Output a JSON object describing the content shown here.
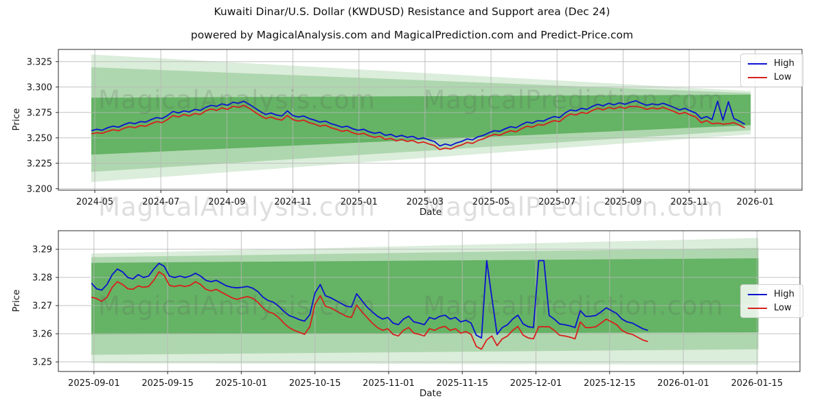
{
  "title": "Kuwaiti Dinar/U.S. Dollar (KWDUSD) Resistance and Support area (Dec 24)",
  "subtitle": "powered by MagicalAnalysis.com and MagicalPrediction.com and Predict-Price.com",
  "watermark": {
    "left": "MagicalAnalysis.com",
    "right": "MagicalPrediction.com"
  },
  "legend": {
    "high": "High",
    "low": "Low"
  },
  "colors": {
    "high": "#0a12d0",
    "low": "#d8201c",
    "band": "#008000",
    "grid": "#b6b6b6",
    "spine": "#2b2b2b",
    "text": "#151515"
  },
  "chart_data": [
    {
      "id": "top",
      "type": "line",
      "xlabel": "Date",
      "ylabel": "Price",
      "x_ticks": [
        "2024-05",
        "2024-07",
        "2024-09",
        "2024-11",
        "2025-01",
        "2025-03",
        "2025-05",
        "2025-07",
        "2025-09",
        "2025-11",
        "2026-01"
      ],
      "y_tick_labels": [
        "3.200",
        "3.225",
        "3.250",
        "3.275",
        "3.300",
        "3.325"
      ],
      "y_tick_values": [
        3.2,
        3.225,
        3.25,
        3.275,
        3.3,
        3.325
      ],
      "ylim": [
        3.1985,
        3.337
      ],
      "grid": true,
      "legend_pos": "upper right",
      "x_tick_span": [
        0.049,
        0.937
      ],
      "x_span": [
        0.0443,
        0.923
      ],
      "band_span": [
        0.0443,
        0.931
      ],
      "bands": [
        {
          "name": "outer-area",
          "opacity": 0.14,
          "left": [
            3.2065,
            3.332
          ],
          "right": [
            3.2535,
            3.296
          ]
        },
        {
          "name": "middle-area",
          "opacity": 0.2,
          "left": [
            3.2165,
            3.3195
          ],
          "right": [
            3.2575,
            3.294
          ]
        },
        {
          "name": "inner-area",
          "opacity": 0.42,
          "left": [
            3.2335,
            3.2895
          ],
          "right": [
            3.2625,
            3.2925
          ]
        }
      ],
      "series": [
        {
          "name": "High",
          "color_key": "high",
          "values": [
            3.257,
            3.2585,
            3.2575,
            3.26,
            3.2615,
            3.2605,
            3.263,
            3.265,
            3.264,
            3.266,
            3.2655,
            3.268,
            3.27,
            3.269,
            3.272,
            3.276,
            3.2745,
            3.2765,
            3.2755,
            3.278,
            3.277,
            3.28,
            3.282,
            3.281,
            3.2835,
            3.282,
            3.285,
            3.284,
            3.286,
            3.283,
            3.2795,
            3.276,
            3.273,
            3.2745,
            3.2725,
            3.2715,
            3.2765,
            3.272,
            3.2705,
            3.2715,
            3.269,
            3.2675,
            3.2655,
            3.2665,
            3.264,
            3.2625,
            3.2605,
            3.2615,
            3.259,
            3.2575,
            3.2585,
            3.256,
            3.2545,
            3.2555,
            3.2525,
            3.2535,
            3.251,
            3.2525,
            3.2505,
            3.2515,
            3.249,
            3.25,
            3.248,
            3.2465,
            3.242,
            3.244,
            3.2425,
            3.245,
            3.2465,
            3.249,
            3.248,
            3.251,
            3.2525,
            3.255,
            3.257,
            3.2565,
            3.259,
            3.261,
            3.26,
            3.263,
            3.2655,
            3.2645,
            3.267,
            3.2665,
            3.269,
            3.271,
            3.27,
            3.2745,
            3.2775,
            3.2765,
            3.279,
            3.278,
            3.281,
            3.283,
            3.2815,
            3.284,
            3.2825,
            3.2845,
            3.283,
            3.285,
            3.2865,
            3.284,
            3.282,
            3.2835,
            3.2825,
            3.284,
            3.282,
            3.28,
            3.2775,
            3.279,
            3.2765,
            3.2745,
            3.269,
            3.271,
            3.268,
            3.286,
            3.2675,
            3.2855,
            3.269,
            3.2665,
            3.2635
          ]
        },
        {
          "name": "Low",
          "color_key": "low",
          "values": [
            3.254,
            3.255,
            3.2545,
            3.2565,
            3.258,
            3.257,
            3.2595,
            3.261,
            3.26,
            3.262,
            3.2615,
            3.264,
            3.266,
            3.265,
            3.268,
            3.272,
            3.2705,
            3.273,
            3.2715,
            3.274,
            3.273,
            3.2765,
            3.2785,
            3.277,
            3.2795,
            3.278,
            3.281,
            3.28,
            3.282,
            3.279,
            3.2755,
            3.272,
            3.269,
            3.2705,
            3.2685,
            3.2675,
            3.272,
            3.268,
            3.2665,
            3.2675,
            3.265,
            3.2635,
            3.2615,
            3.2625,
            3.26,
            3.2585,
            3.2565,
            3.2575,
            3.255,
            3.2535,
            3.2545,
            3.252,
            3.2505,
            3.2515,
            3.2485,
            3.2495,
            3.247,
            3.2485,
            3.2465,
            3.2475,
            3.245,
            3.246,
            3.244,
            3.2425,
            3.2385,
            3.24,
            3.239,
            3.2415,
            3.243,
            3.2455,
            3.2445,
            3.2475,
            3.249,
            3.2515,
            3.2535,
            3.2525,
            3.255,
            3.257,
            3.256,
            3.259,
            3.2615,
            3.2605,
            3.263,
            3.2625,
            3.265,
            3.267,
            3.266,
            3.2705,
            3.2735,
            3.2725,
            3.275,
            3.274,
            3.277,
            3.279,
            3.2775,
            3.28,
            3.2785,
            3.2805,
            3.279,
            3.281,
            3.281,
            3.28,
            3.278,
            3.2795,
            3.2785,
            3.28,
            3.278,
            3.276,
            3.2735,
            3.275,
            3.2725,
            3.2705,
            3.265,
            3.267,
            3.264,
            3.2645,
            3.2635,
            3.264,
            3.265,
            3.2625,
            3.26
          ]
        }
      ]
    },
    {
      "id": "bottom",
      "type": "line",
      "xlabel": "Date",
      "ylabel": "Price",
      "x_ticks": [
        "2025-09-01",
        "2025-09-15",
        "2025-10-01",
        "2025-10-15",
        "2025-11-01",
        "2025-11-15",
        "2025-12-01",
        "2025-12-15",
        "2026-01-01",
        "2026-01-15"
      ],
      "y_tick_labels": [
        "3.25",
        "3.26",
        "3.27",
        "3.28",
        "3.29"
      ],
      "y_tick_values": [
        3.25,
        3.26,
        3.27,
        3.28,
        3.29
      ],
      "ylim": [
        3.2466,
        3.2966
      ],
      "grid": true,
      "legend_pos": "center right",
      "x_tick_span": [
        0.048,
        0.942
      ],
      "x_span": [
        0.0445,
        0.795
      ],
      "band_span": [
        0.0445,
        0.944
      ],
      "bands": [
        {
          "name": "outer-area",
          "opacity": 0.14,
          "left": [
            3.2495,
            3.2885
          ],
          "right": [
            3.249,
            3.294
          ]
        },
        {
          "name": "middle-area",
          "opacity": 0.2,
          "left": [
            3.2525,
            3.2872
          ],
          "right": [
            3.2545,
            3.2905
          ]
        },
        {
          "name": "inner-area",
          "opacity": 0.42,
          "left": [
            3.2598,
            3.2852
          ],
          "right": [
            3.2605,
            3.2868
          ]
        }
      ],
      "series": [
        {
          "name": "High",
          "color_key": "high",
          "values": [
            3.278,
            3.276,
            3.2755,
            3.2775,
            3.281,
            3.283,
            3.282,
            3.28,
            3.2795,
            3.281,
            3.28,
            3.2805,
            3.283,
            3.285,
            3.284,
            3.2805,
            3.28,
            3.2805,
            3.28,
            3.2805,
            3.2815,
            3.2805,
            3.279,
            3.2785,
            3.279,
            3.278,
            3.277,
            3.2765,
            3.2763,
            3.2765,
            3.2768,
            3.2762,
            3.275,
            3.273,
            3.2718,
            3.2712,
            3.2698,
            3.268,
            3.2665,
            3.2658,
            3.265,
            3.2645,
            3.2668,
            3.2745,
            3.2775,
            3.2735,
            3.2728,
            3.2718,
            3.2708,
            3.2698,
            3.2695,
            3.2742,
            3.2718,
            3.2695,
            3.2678,
            3.2662,
            3.2652,
            3.2658,
            3.2638,
            3.2632,
            3.2652,
            3.2662,
            3.2642,
            3.2638,
            3.2632,
            3.2658,
            3.2652,
            3.2662,
            3.2666,
            3.2652,
            3.2658,
            3.2642,
            3.2648,
            3.2638,
            3.2595,
            3.2585,
            3.286,
            3.2728,
            3.2598,
            3.2622,
            3.2632,
            3.2652,
            3.2666,
            3.2635,
            3.2625,
            3.2622,
            3.286,
            3.286,
            3.2665,
            3.2652,
            3.2635,
            3.2632,
            3.2628,
            3.2622,
            3.2682,
            3.2662,
            3.2662,
            3.2665,
            3.2678,
            3.2692,
            3.2682,
            3.2672,
            3.2652,
            3.2642,
            3.2638,
            3.2628,
            3.2618,
            3.2612
          ]
        },
        {
          "name": "Low",
          "color_key": "low",
          "values": [
            3.273,
            3.2725,
            3.2715,
            3.273,
            3.2765,
            3.2785,
            3.2775,
            3.276,
            3.2758,
            3.277,
            3.2765,
            3.2768,
            3.279,
            3.282,
            3.2808,
            3.2772,
            3.2768,
            3.2772,
            3.2768,
            3.2772,
            3.2785,
            3.2775,
            3.2758,
            3.2752,
            3.2758,
            3.2748,
            3.2738,
            3.2728,
            3.2722,
            3.2728,
            3.2732,
            3.2726,
            3.2712,
            3.2692,
            3.2678,
            3.2672,
            3.2658,
            3.2638,
            3.2622,
            3.2612,
            3.2605,
            3.2598,
            3.2625,
            3.2705,
            3.2735,
            3.2698,
            3.2692,
            3.2682,
            3.2672,
            3.2662,
            3.2658,
            3.2702,
            3.2678,
            3.2658,
            3.2638,
            3.2622,
            3.2612,
            3.2618,
            3.2598,
            3.2592,
            3.2612,
            3.2622,
            3.2602,
            3.2598,
            3.2592,
            3.2618,
            3.2612,
            3.2622,
            3.2626,
            3.2612,
            3.2618,
            3.2602,
            3.2608,
            3.2598,
            3.2555,
            3.2545,
            3.2578,
            3.2592,
            3.2558,
            3.2582,
            3.2592,
            3.2612,
            3.2626,
            3.2595,
            3.2585,
            3.2582,
            3.2625,
            3.2625,
            3.2625,
            3.2612,
            3.2595,
            3.2592,
            3.2588,
            3.2582,
            3.2642,
            3.2622,
            3.2622,
            3.2625,
            3.2638,
            3.2652,
            3.2642,
            3.2632,
            3.2612,
            3.2602,
            3.2598,
            3.2588,
            3.2578,
            3.2572
          ]
        }
      ]
    }
  ]
}
